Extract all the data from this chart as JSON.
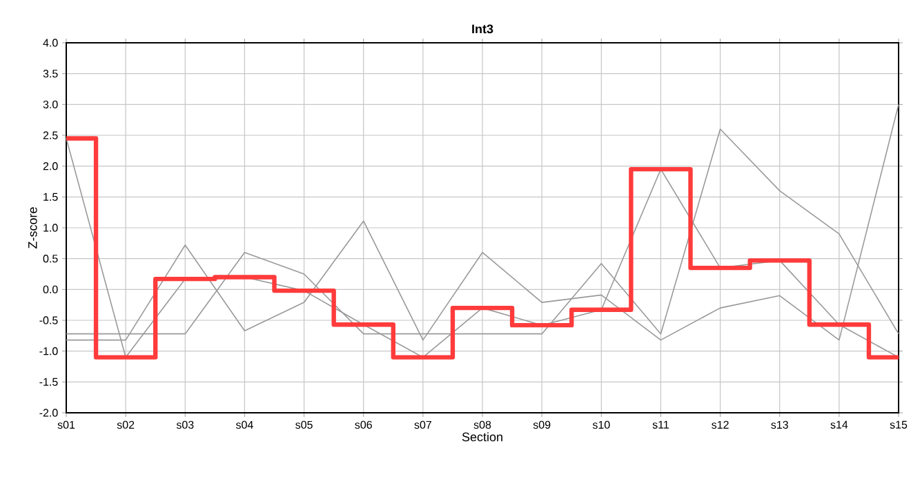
{
  "chart_data": {
    "type": "line",
    "title": "Int3",
    "xlabel": "Section",
    "ylabel": "Z-score",
    "categories": [
      "s01",
      "s02",
      "s03",
      "s04",
      "s05",
      "s06",
      "s07",
      "s08",
      "s09",
      "s10",
      "s11",
      "s12",
      "s13",
      "s14",
      "s15"
    ],
    "series": [
      {
        "type": "line",
        "color": "#999999",
        "values": [
          -0.72,
          -0.72,
          -0.72,
          0.6,
          0.25,
          -0.72,
          -0.72,
          -0.72,
          -0.72,
          0.42,
          -0.72,
          2.6,
          1.6,
          0.9,
          -0.72
        ]
      },
      {
        "type": "line",
        "color": "#999999",
        "values": [
          -0.82,
          -0.82,
          0.72,
          -0.67,
          -0.21,
          1.11,
          -0.82,
          0.6,
          -0.21,
          -0.09,
          -0.82,
          -0.3,
          -0.1,
          -0.82,
          3.0
        ]
      },
      {
        "type": "line",
        "color": "#999999",
        "values": [
          2.45,
          -1.1,
          0.17,
          0.2,
          -0.02,
          -0.57,
          -1.1,
          -0.3,
          -0.58,
          -0.33,
          1.95,
          0.35,
          0.47,
          -0.57,
          -1.1
        ]
      },
      {
        "type": "step",
        "color": "#ff3b3b",
        "values": [
          2.45,
          -1.1,
          0.17,
          0.2,
          -0.02,
          -0.57,
          -1.1,
          -0.3,
          -0.58,
          -0.33,
          1.95,
          0.35,
          0.47,
          -0.57,
          -1.1
        ]
      }
    ],
    "ylim": [
      -2,
      4
    ],
    "yticks": [
      {
        "value": -2,
        "label": "-2.0"
      },
      {
        "value": -1.5,
        "label": "-1.5"
      },
      {
        "value": -1,
        "label": "-1.0"
      },
      {
        "value": -0.5,
        "label": "-0.5"
      },
      {
        "value": 0,
        "label": "0.0"
      },
      {
        "value": 0.5,
        "label": "0.5"
      },
      {
        "value": 1,
        "label": "1.0"
      },
      {
        "value": 1.5,
        "label": "1.5"
      },
      {
        "value": 2,
        "label": "2.0"
      },
      {
        "value": 2.5,
        "label": "2.5"
      },
      {
        "value": 3,
        "label": "3.0"
      },
      {
        "value": 3.5,
        "label": "3.5"
      },
      {
        "value": 4,
        "label": "4.0"
      }
    ],
    "grid": true,
    "marker": "none",
    "line_style": "solid"
  }
}
